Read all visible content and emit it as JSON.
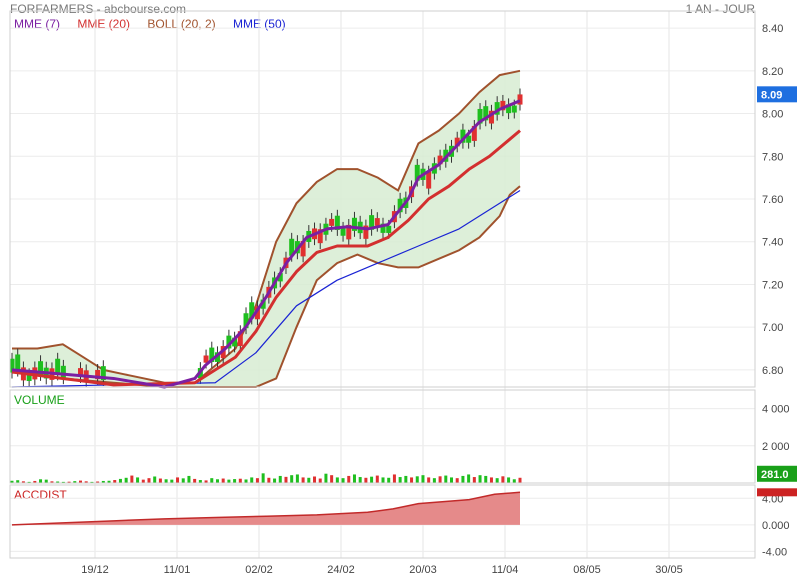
{
  "header": {
    "title": "FORFARMERS - abcbourse.com",
    "period": "1 AN - JOUR"
  },
  "legend": [
    {
      "label": "MME (7)",
      "color": "#7b1fa2"
    },
    {
      "label": "MME (20)",
      "color": "#d32f2f"
    },
    {
      "label": "BOLL (20, 2)",
      "color": "#a0522d"
    },
    {
      "label": "MME (50)",
      "color": "#1a23d4"
    }
  ],
  "colors": {
    "up": "#1fbf1f",
    "down": "#e03030",
    "boll_fill": "#d7ecd2",
    "badge_price": "#1e6fe0",
    "badge_volume": "#19a019",
    "badge_acc": "#cc2222",
    "acc_fill": "#e58a8a",
    "acc_line": "#c22a2a"
  },
  "chart_data": [
    {
      "type": "candlestick",
      "name": "price",
      "ylim": [
        6.72,
        8.48
      ],
      "yticks": [
        "8.40",
        "8.20",
        "8.00",
        "7.80",
        "7.60",
        "7.40",
        "7.20",
        "7.00",
        "6.80"
      ],
      "ytick_values": [
        8.4,
        8.2,
        8.0,
        7.8,
        7.6,
        7.4,
        7.2,
        7.0,
        6.8
      ],
      "x_categories": [
        "19/12",
        "11/01",
        "02/02",
        "24/02",
        "20/03",
        "11/04",
        "08/05",
        "30/05"
      ],
      "last_price": "8.09",
      "last_price_value": 8.09,
      "series": [
        {
          "name": "MME (7)",
          "points": [
            [
              0,
              6.8
            ],
            [
              10,
              6.78
            ],
            [
              20,
              6.76
            ],
            [
              30,
              6.72
            ],
            [
              36,
              6.76
            ],
            [
              38,
              6.82
            ],
            [
              42,
              6.9
            ],
            [
              46,
              7.0
            ],
            [
              50,
              7.14
            ],
            [
              54,
              7.3
            ],
            [
              58,
              7.42
            ],
            [
              62,
              7.46
            ],
            [
              66,
              7.47
            ],
            [
              70,
              7.46
            ],
            [
              74,
              7.48
            ],
            [
              78,
              7.6
            ],
            [
              80,
              7.7
            ],
            [
              84,
              7.76
            ],
            [
              88,
              7.86
            ],
            [
              92,
              7.96
            ],
            [
              96,
              8.02
            ],
            [
              100,
              8.06
            ]
          ]
        },
        {
          "name": "MME (20)",
          "points": [
            [
              0,
              6.79
            ],
            [
              10,
              6.76
            ],
            [
              20,
              6.73
            ],
            [
              30,
              6.7
            ],
            [
              36,
              6.74
            ],
            [
              40,
              6.8
            ],
            [
              44,
              6.86
            ],
            [
              48,
              6.98
            ],
            [
              52,
              7.14
            ],
            [
              56,
              7.26
            ],
            [
              60,
              7.35
            ],
            [
              64,
              7.38
            ],
            [
              70,
              7.38
            ],
            [
              74,
              7.42
            ],
            [
              78,
              7.5
            ],
            [
              82,
              7.6
            ],
            [
              86,
              7.66
            ],
            [
              90,
              7.74
            ],
            [
              94,
              7.8
            ],
            [
              98,
              7.88
            ],
            [
              100,
              7.92
            ]
          ]
        },
        {
          "name": "BOLL (20, 2)",
          "upper": [
            [
              0,
              6.9
            ],
            [
              5,
              6.9
            ],
            [
              10,
              6.92
            ],
            [
              14,
              6.86
            ],
            [
              18,
              6.8
            ],
            [
              22,
              6.78
            ],
            [
              26,
              6.76
            ],
            [
              30,
              6.74
            ],
            [
              36,
              6.74
            ],
            [
              40,
              6.82
            ],
            [
              44,
              6.9
            ],
            [
              48,
              7.1
            ],
            [
              52,
              7.4
            ],
            [
              56,
              7.58
            ],
            [
              60,
              7.68
            ],
            [
              64,
              7.74
            ],
            [
              68,
              7.74
            ],
            [
              72,
              7.7
            ],
            [
              76,
              7.64
            ],
            [
              80,
              7.86
            ],
            [
              84,
              7.92
            ],
            [
              88,
              8.0
            ],
            [
              92,
              8.1
            ],
            [
              96,
              8.18
            ],
            [
              100,
              8.2
            ]
          ],
          "lower": [
            [
              0,
              6.8
            ],
            [
              10,
              6.76
            ],
            [
              20,
              6.74
            ],
            [
              30,
              6.72
            ],
            [
              40,
              6.7
            ],
            [
              48,
              6.72
            ],
            [
              52,
              6.76
            ],
            [
              56,
              7.0
            ],
            [
              60,
              7.22
            ],
            [
              64,
              7.3
            ],
            [
              68,
              7.34
            ],
            [
              72,
              7.3
            ],
            [
              76,
              7.28
            ],
            [
              80,
              7.28
            ],
            [
              84,
              7.32
            ],
            [
              88,
              7.36
            ],
            [
              92,
              7.42
            ],
            [
              96,
              7.52
            ],
            [
              98,
              7.62
            ],
            [
              100,
              7.66
            ]
          ]
        },
        {
          "name": "MME (50)",
          "points": [
            [
              0,
              6.72
            ],
            [
              30,
              6.7
            ],
            [
              40,
              6.74
            ],
            [
              48,
              6.88
            ],
            [
              56,
              7.1
            ],
            [
              64,
              7.22
            ],
            [
              72,
              7.3
            ],
            [
              80,
              7.38
            ],
            [
              88,
              7.46
            ],
            [
              96,
              7.58
            ],
            [
              100,
              7.64
            ]
          ]
        }
      ]
    },
    {
      "type": "bar",
      "name": "VOLUME",
      "ylim": [
        0,
        5000
      ],
      "yticks": [
        "4 000",
        "2 000"
      ],
      "ytick_values": [
        4000,
        2000
      ],
      "last_value": "281.0",
      "values": [
        120,
        150,
        90,
        60,
        110,
        200,
        180,
        90,
        80,
        60,
        70,
        100,
        130,
        90,
        60,
        80,
        110,
        120,
        160,
        220,
        280,
        400,
        300,
        180,
        260,
        350,
        240,
        200,
        180,
        300,
        250,
        380,
        220,
        160,
        140,
        260,
        200,
        240,
        180,
        210,
        230,
        190,
        300,
        260,
        520,
        280,
        240,
        380,
        330,
        420,
        460,
        300,
        280,
        350,
        240,
        500,
        420,
        300,
        260,
        380,
        460,
        320,
        280,
        340,
        400,
        300,
        280,
        460,
        320,
        380,
        300,
        360,
        420,
        300,
        260,
        360,
        400,
        300,
        260,
        380,
        460,
        320,
        420,
        380,
        300,
        260,
        360,
        300,
        200,
        281
      ]
    },
    {
      "type": "area",
      "name": "ACCDIST",
      "ylim": [
        -5,
        6
      ],
      "yticks": [
        "4.00",
        "0.000",
        "-4.00"
      ],
      "ytick_values": [
        4.0,
        0.0,
        -4.0
      ],
      "points": [
        [
          0,
          0.0
        ],
        [
          10,
          0.3
        ],
        [
          20,
          0.6
        ],
        [
          30,
          0.9
        ],
        [
          40,
          1.1
        ],
        [
          50,
          1.3
        ],
        [
          60,
          1.5
        ],
        [
          70,
          1.9
        ],
        [
          75,
          2.4
        ],
        [
          80,
          3.2
        ],
        [
          85,
          3.5
        ],
        [
          90,
          3.8
        ],
        [
          95,
          4.6
        ],
        [
          100,
          4.9
        ]
      ]
    }
  ]
}
